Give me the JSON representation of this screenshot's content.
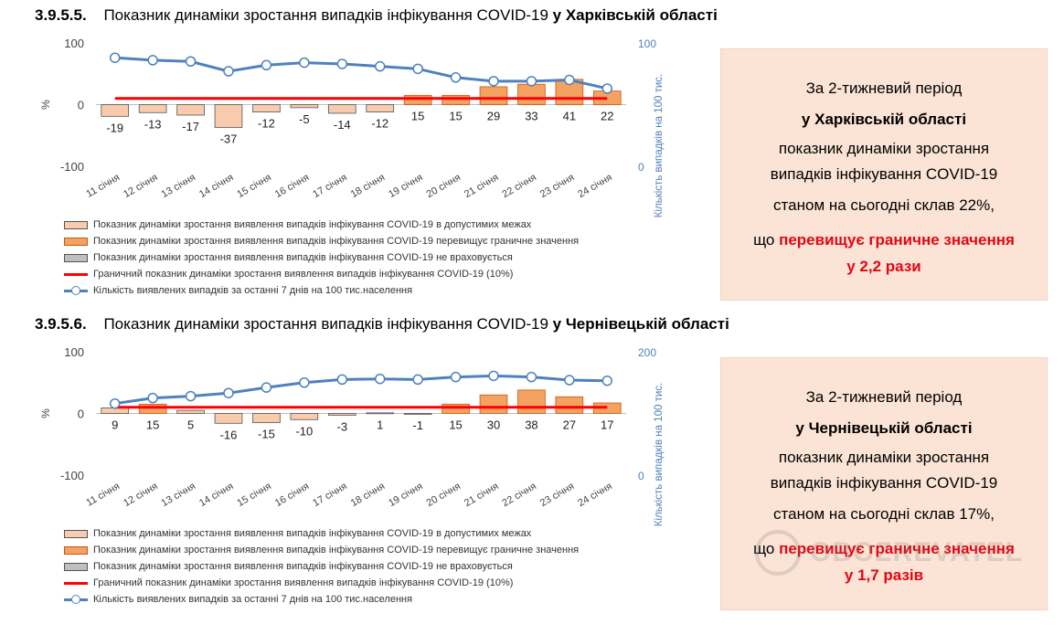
{
  "charts": [
    {
      "heading": {
        "number": "3.9.5.5.",
        "text": "Показник динаміки зростання випадків інфікування COVID-19",
        "region": "у Харківській області"
      },
      "info_box": {
        "line1": "За 2-тижневий період",
        "line2": "у Харківській області",
        "line3": "показник динаміки зростання",
        "line4": "випадків інфікування COVID-19",
        "line5": "станом на сьогодні склав 22%,",
        "line6_prefix": "що ",
        "line6_red": "перевищує граничне значення",
        "line7_red": "у 2,2 рази"
      }
    },
    {
      "heading": {
        "number": "3.9.5.6.",
        "text": "Показник динаміки зростання випадків інфікування COVID-19",
        "region": "у Чернівецькій області"
      },
      "info_box": {
        "line1": "За 2-тижневий період",
        "line2": "у Чернівецькій області",
        "line3": "показник динаміки зростання",
        "line4": "випадків інфікування COVID-19",
        "line5": "станом на сьогодні склав 17%,",
        "line6_prefix": "що ",
        "line6_red": "перевищує граничне значення",
        "line7_red": "у 1,7 разів"
      }
    }
  ],
  "legend": {
    "within_limits": "Показник динаміки зростання виявлення випадків інфікування COVID-19 в допустимих межах",
    "exceeds": "Показник динаміки зростання виявлення випадків інфікування COVID-19 перевищує граничне значення",
    "not_counted": "Показник динаміки зростання виявлення випадків інфікування COVID-19 не враховується",
    "threshold": "Граничний показник динаміки зростання виявлення випадків інфікування COVID-19 (10%)",
    "cases": "Кількість виявлених випадків за останні 7 днів на 100 тис.населення"
  },
  "colors": {
    "within": "#f8cbad",
    "exceeds": "#f4a261",
    "exceeds_border": "#c55a11",
    "not_counted": "#bfbfbf",
    "threshold": "#ff0000",
    "cases_line": "#4f81bd",
    "axis_label_right": "#4f81bd"
  },
  "chart_data": [
    {
      "type": "bar",
      "categories": [
        "11 січня",
        "12 січня",
        "13 січня",
        "14 січня",
        "15 січня",
        "16 січня",
        "17 січня",
        "18 січня",
        "19 січня",
        "20 січня",
        "21 січня",
        "22 січня",
        "23 січня",
        "24 січня"
      ],
      "ylabel": "%",
      "ylim": [
        -100,
        100
      ],
      "yticks": [
        100,
        0,
        -100
      ],
      "y2label": "Кількість випадків на 100 тис.",
      "y2lim": [
        0,
        100
      ],
      "y2ticks": [
        100,
        0
      ],
      "threshold": 10,
      "series": [
        {
          "name": "Показник динаміки зростання",
          "values": [
            -19,
            -13,
            -17,
            -37,
            -12,
            -5,
            -14,
            -12,
            15,
            15,
            29,
            33,
            41,
            22
          ]
        },
        {
          "name": "Кількість виявлених випадків за останні 7 днів на 100 тис.населення",
          "axis": "right",
          "values": [
            88,
            86,
            85,
            77,
            82,
            84,
            83,
            81,
            79,
            72,
            69,
            69,
            70,
            63
          ]
        }
      ]
    },
    {
      "type": "bar",
      "categories": [
        "11 січня",
        "12 січня",
        "13 січня",
        "14 січня",
        "15 січня",
        "16 січня",
        "17 січня",
        "18 січня",
        "19 січня",
        "20 січня",
        "21 січня",
        "22 січня",
        "23 січня",
        "24 січня"
      ],
      "ylabel": "%",
      "ylim": [
        -100,
        100
      ],
      "yticks": [
        100,
        0,
        -100
      ],
      "y2label": "Кількість випадків на 100 тис.",
      "y2lim": [
        0,
        200
      ],
      "y2ticks": [
        200,
        0
      ],
      "threshold": 10,
      "series": [
        {
          "name": "Показник динаміки зростання",
          "values": [
            9,
            15,
            5,
            -16,
            -15,
            -10,
            -3,
            1,
            -1,
            15,
            30,
            38,
            27,
            17
          ]
        },
        {
          "name": "Кількість виявлених випадків за останні 7 днів на 100 тис.населення",
          "axis": "right",
          "values": [
            116,
            125,
            128,
            133,
            142,
            150,
            155,
            156,
            155,
            159,
            161,
            159,
            154,
            153
          ]
        }
      ]
    }
  ],
  "watermark": "OBOZREVATEL"
}
